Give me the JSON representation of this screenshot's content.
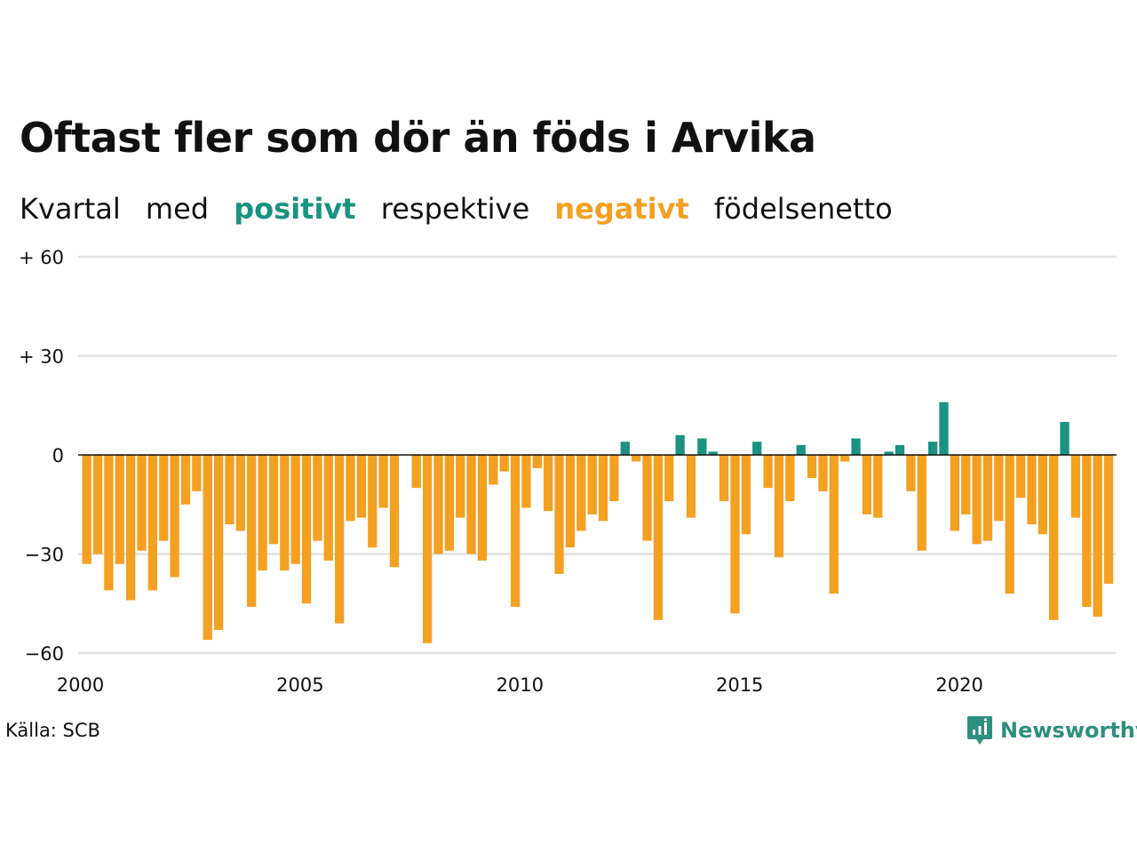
{
  "title": "Oftast fler som dör än föds i Arvika",
  "subtitle": {
    "w1": "Kvartal",
    "w2": "med",
    "positive": "positivt",
    "w3": "respektive",
    "negative": "negativt",
    "w4": "födelsenetto"
  },
  "source": "Källa: SCB",
  "brand": {
    "name": "Newsworthy",
    "logo_icon": "chart-bubble-icon"
  },
  "colors": {
    "positive": "#1a9380",
    "negative": "#f4a021",
    "grid": "#e3e3e3",
    "zero": "#111111"
  },
  "chart_data": {
    "type": "bar",
    "x_start": "2000 Q1",
    "categories_note_unit": "quarter",
    "ylim": [
      -60,
      60
    ],
    "yticks": [
      {
        "value": 60,
        "label": "+ 60"
      },
      {
        "value": 30,
        "label": "+ 30"
      },
      {
        "value": 0,
        "label": "0"
      },
      {
        "value": -30,
        "label": "−30"
      },
      {
        "value": -60,
        "label": "−60"
      }
    ],
    "xticks": [
      {
        "label": "2000",
        "quarter_index": 0
      },
      {
        "label": "2005",
        "quarter_index": 20
      },
      {
        "label": "2010",
        "quarter_index": 40
      },
      {
        "label": "2015",
        "quarter_index": 60
      },
      {
        "label": "2020",
        "quarter_index": 80
      }
    ],
    "values": [
      -33,
      -30,
      -41,
      -33,
      -44,
      -29,
      -41,
      -26,
      -37,
      -15,
      -11,
      -56,
      -53,
      -21,
      -23,
      -46,
      -35,
      -27,
      -35,
      -33,
      -45,
      -26,
      -32,
      -51,
      -20,
      -19,
      -28,
      -16,
      -34,
      0,
      -10,
      -57,
      -30,
      -29,
      -19,
      -30,
      -32,
      -9,
      -5,
      -46,
      -16,
      -4,
      -17,
      -36,
      -28,
      -23,
      -18,
      -20,
      -14,
      4,
      -2,
      -26,
      -50,
      -14,
      6,
      -19,
      5,
      1,
      -14,
      -48,
      -24,
      4,
      -10,
      -31,
      -14,
      3,
      -7,
      -11,
      -42,
      -2,
      5,
      -18,
      -19,
      1,
      3,
      -11,
      -29,
      4,
      16,
      -23,
      -18,
      -27,
      -26,
      -20,
      -42,
      -13,
      -21,
      -24,
      -50,
      10,
      -19,
      -46,
      -49,
      -39
    ]
  }
}
